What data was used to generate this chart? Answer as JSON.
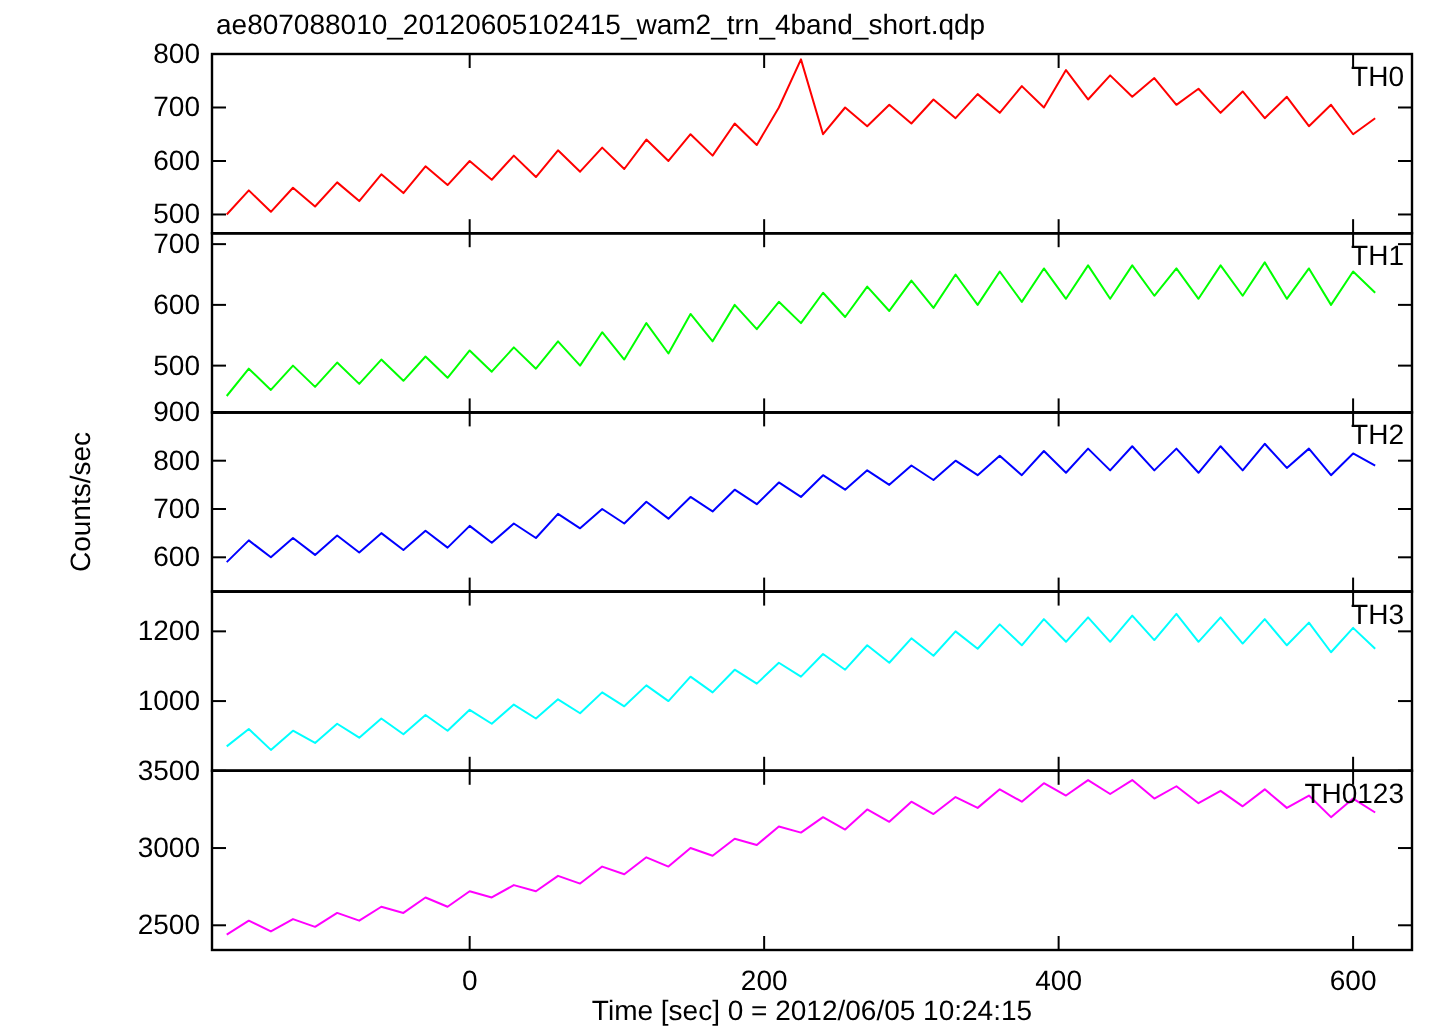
{
  "chart_data": [
    {
      "type": "line",
      "title": "ae807088010_20120605102415_wam2_trn_4band_short.qdp",
      "tick_labels": "y",
      "xlim": [
        -175,
        640
      ],
      "xticks": [
        0,
        200,
        400,
        600
      ],
      "ylim": [
        465,
        800
      ],
      "yticks": [
        500,
        600,
        700,
        800
      ],
      "x": [
        -165,
        -150,
        -135,
        -120,
        -105,
        -90,
        -75,
        -60,
        -45,
        -30,
        -15,
        0,
        15,
        30,
        45,
        60,
        75,
        90,
        105,
        120,
        135,
        150,
        165,
        180,
        195,
        210,
        225,
        240,
        255,
        270,
        285,
        300,
        315,
        330,
        345,
        360,
        375,
        390,
        405,
        420,
        435,
        450,
        465,
        480,
        495,
        510,
        525,
        540,
        555,
        570,
        585,
        600,
        615
      ],
      "series": [
        {
          "name": "TH0",
          "color": "#ff0000",
          "values": [
            500,
            545,
            505,
            550,
            515,
            560,
            525,
            575,
            540,
            590,
            555,
            600,
            565,
            610,
            570,
            620,
            580,
            625,
            585,
            640,
            600,
            650,
            610,
            670,
            630,
            700,
            790,
            650,
            700,
            665,
            705,
            670,
            715,
            680,
            725,
            690,
            740,
            700,
            770,
            715,
            760,
            720,
            755,
            705,
            735,
            690,
            730,
            680,
            720,
            665,
            705,
            650,
            680
          ]
        }
      ]
    },
    {
      "type": "line",
      "tick_labels": "y",
      "xlim": [
        -175,
        640
      ],
      "xticks": [
        0,
        200,
        400,
        600
      ],
      "ylim": [
        423,
        718
      ],
      "yticks": [
        500,
        600,
        700
      ],
      "x": [
        -165,
        -150,
        -135,
        -120,
        -105,
        -90,
        -75,
        -60,
        -45,
        -30,
        -15,
        0,
        15,
        30,
        45,
        60,
        75,
        90,
        105,
        120,
        135,
        150,
        165,
        180,
        195,
        210,
        225,
        240,
        255,
        270,
        285,
        300,
        315,
        330,
        345,
        360,
        375,
        390,
        405,
        420,
        435,
        450,
        465,
        480,
        495,
        510,
        525,
        540,
        555,
        570,
        585,
        600,
        615
      ],
      "series": [
        {
          "name": "TH1",
          "color": "#00ff00",
          "values": [
            450,
            495,
            460,
            500,
            465,
            505,
            470,
            510,
            475,
            515,
            480,
            525,
            490,
            530,
            495,
            540,
            500,
            555,
            510,
            570,
            520,
            585,
            540,
            600,
            560,
            605,
            570,
            620,
            580,
            630,
            590,
            640,
            595,
            650,
            600,
            655,
            605,
            660,
            610,
            665,
            610,
            665,
            615,
            660,
            610,
            665,
            615,
            670,
            610,
            660,
            600,
            655,
            620
          ]
        }
      ]
    },
    {
      "type": "line",
      "ylabel": "Counts/sec",
      "tick_labels": "y",
      "xlim": [
        -175,
        640
      ],
      "xticks": [
        0,
        200,
        400,
        600
      ],
      "ylim": [
        529,
        900
      ],
      "yticks": [
        600,
        700,
        800,
        900
      ],
      "x": [
        -165,
        -150,
        -135,
        -120,
        -105,
        -90,
        -75,
        -60,
        -45,
        -30,
        -15,
        0,
        15,
        30,
        45,
        60,
        75,
        90,
        105,
        120,
        135,
        150,
        165,
        180,
        195,
        210,
        225,
        240,
        255,
        270,
        285,
        300,
        315,
        330,
        345,
        360,
        375,
        390,
        405,
        420,
        435,
        450,
        465,
        480,
        495,
        510,
        525,
        540,
        555,
        570,
        585,
        600,
        615
      ],
      "series": [
        {
          "name": "TH2",
          "color": "#0000ff",
          "values": [
            590,
            635,
            600,
            640,
            605,
            645,
            610,
            650,
            615,
            655,
            620,
            665,
            630,
            670,
            640,
            690,
            660,
            700,
            670,
            715,
            680,
            725,
            695,
            740,
            710,
            755,
            725,
            770,
            740,
            780,
            750,
            790,
            760,
            800,
            770,
            810,
            770,
            820,
            775,
            825,
            780,
            830,
            780,
            825,
            775,
            830,
            780,
            835,
            785,
            825,
            770,
            815,
            790
          ]
        }
      ]
    },
    {
      "type": "line",
      "tick_labels": "y",
      "xlim": [
        -175,
        640
      ],
      "xticks": [
        0,
        200,
        400,
        600
      ],
      "ylim": [
        800,
        1314
      ],
      "yticks": [
        1000,
        1200
      ],
      "x": [
        -165,
        -150,
        -135,
        -120,
        -105,
        -90,
        -75,
        -60,
        -45,
        -30,
        -15,
        0,
        15,
        30,
        45,
        60,
        75,
        90,
        105,
        120,
        135,
        150,
        165,
        180,
        195,
        210,
        225,
        240,
        255,
        270,
        285,
        300,
        315,
        330,
        345,
        360,
        375,
        390,
        405,
        420,
        435,
        450,
        465,
        480,
        495,
        510,
        525,
        540,
        555,
        570,
        585,
        600,
        615
      ],
      "series": [
        {
          "name": "TH3",
          "color": "#00ffff",
          "values": [
            870,
            920,
            860,
            915,
            880,
            935,
            895,
            950,
            905,
            960,
            915,
            975,
            935,
            990,
            950,
            1005,
            965,
            1025,
            985,
            1045,
            1000,
            1070,
            1025,
            1090,
            1050,
            1110,
            1070,
            1135,
            1090,
            1160,
            1110,
            1180,
            1130,
            1200,
            1150,
            1220,
            1160,
            1235,
            1170,
            1240,
            1170,
            1245,
            1175,
            1250,
            1170,
            1240,
            1165,
            1235,
            1160,
            1225,
            1140,
            1210,
            1150
          ]
        }
      ]
    },
    {
      "type": "line",
      "xlabel": "Time [sec] 0 = 2012/06/05 10:24:15",
      "xlim": [
        -175,
        640
      ],
      "xticks": [
        0,
        200,
        400,
        600
      ],
      "ylim": [
        2340,
        3500
      ],
      "yticks": [
        2500,
        3000,
        3500
      ],
      "x": [
        -165,
        -150,
        -135,
        -120,
        -105,
        -90,
        -75,
        -60,
        -45,
        -30,
        -15,
        0,
        15,
        30,
        45,
        60,
        75,
        90,
        105,
        120,
        135,
        150,
        165,
        180,
        195,
        210,
        225,
        240,
        255,
        270,
        285,
        300,
        315,
        330,
        345,
        360,
        375,
        390,
        405,
        420,
        435,
        450,
        465,
        480,
        495,
        510,
        525,
        540,
        555,
        570,
        585,
        600,
        615
      ],
      "series": [
        {
          "name": "TH0123",
          "color": "#ff00ff",
          "values": [
            2440,
            2530,
            2460,
            2540,
            2490,
            2580,
            2530,
            2620,
            2580,
            2680,
            2620,
            2720,
            2680,
            2760,
            2720,
            2820,
            2770,
            2880,
            2830,
            2940,
            2880,
            3000,
            2950,
            3060,
            3020,
            3140,
            3100,
            3200,
            3120,
            3250,
            3170,
            3300,
            3220,
            3330,
            3260,
            3380,
            3300,
            3420,
            3340,
            3440,
            3350,
            3440,
            3320,
            3400,
            3290,
            3370,
            3270,
            3380,
            3260,
            3340,
            3200,
            3320,
            3230
          ]
        }
      ]
    }
  ]
}
